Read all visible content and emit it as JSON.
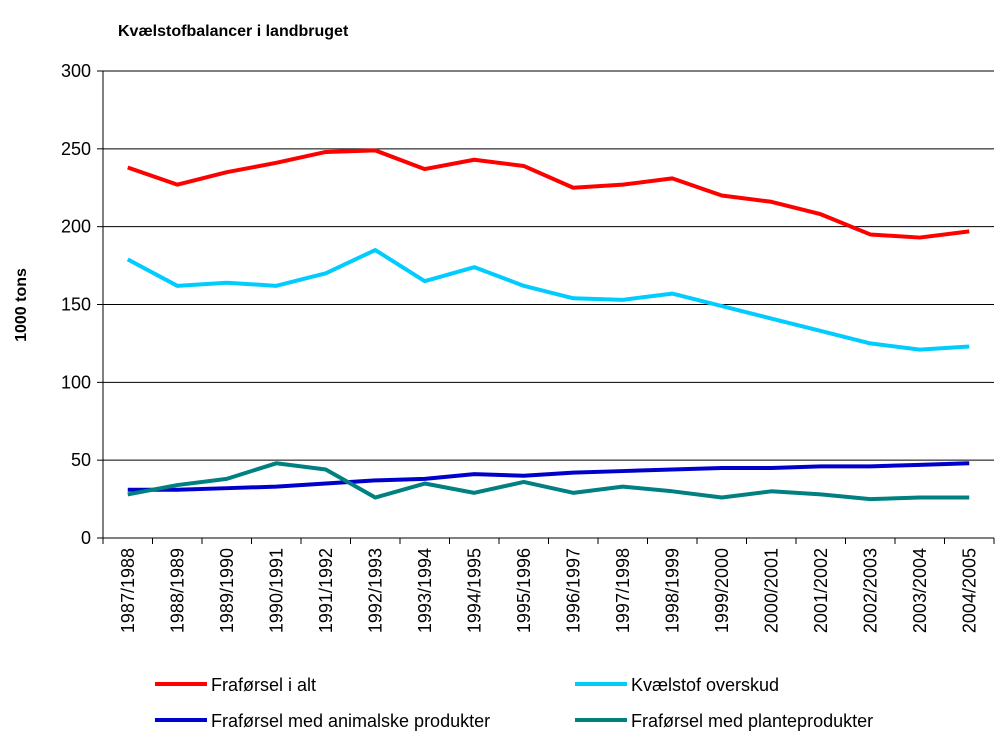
{
  "chart_data": {
    "type": "line",
    "title": "Kvælstofbalancer i landbruget",
    "y_label": "1000 tons",
    "categories": [
      "1987/1988",
      "1988/1989",
      "1989/1990",
      "1990/1991",
      "1991/1992",
      "1992/1993",
      "1993/1994",
      "1994/1995",
      "1995/1996",
      "1996/1997",
      "1997/1998",
      "1998/1999",
      "1999/2000",
      "2000/2001",
      "2001/2002",
      "2002/2003",
      "2003/2004",
      "2004/2005"
    ],
    "series": [
      {
        "name": "Fraførsel i alt",
        "color": "#ff0000",
        "values": [
          238,
          227,
          235,
          241,
          248,
          249,
          237,
          243,
          239,
          225,
          227,
          231,
          220,
          216,
          208,
          195,
          193,
          197
        ]
      },
      {
        "name": "Kvælstof overskud",
        "color": "#00ccff",
        "values": [
          179,
          162,
          164,
          162,
          170,
          185,
          165,
          174,
          162,
          154,
          153,
          157,
          149,
          141,
          133,
          125,
          121,
          123
        ]
      },
      {
        "name": "Fraførsel med animalske produkter",
        "color": "#0000cc",
        "values": [
          31,
          31,
          32,
          33,
          35,
          37,
          38,
          41,
          40,
          42,
          43,
          44,
          45,
          45,
          46,
          46,
          47,
          48
        ]
      },
      {
        "name": "Fraførsel med planteprodukter",
        "color": "#008080",
        "values": [
          28,
          34,
          38,
          48,
          44,
          26,
          35,
          29,
          36,
          29,
          33,
          30,
          26,
          30,
          28,
          25,
          26,
          26
        ]
      }
    ],
    "ylim": [
      0,
      300
    ],
    "yticks": [
      0,
      50,
      100,
      150,
      200,
      250,
      300
    ],
    "grid": true
  }
}
